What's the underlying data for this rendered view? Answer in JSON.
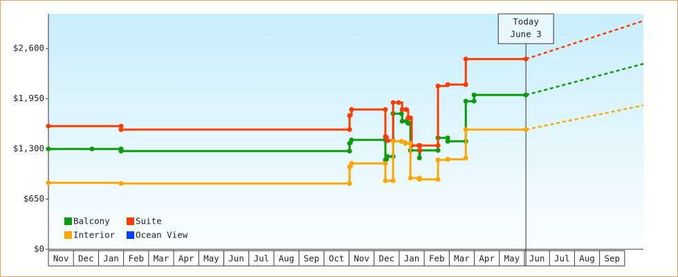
{
  "chart_data": {
    "type": "step-line",
    "ylim": [
      0,
      3050
    ],
    "yticks": [
      {
        "value": 0,
        "label": "$0"
      },
      {
        "value": 650,
        "label": "$650"
      },
      {
        "value": 1300,
        "label": "$1,300"
      },
      {
        "value": 1950,
        "label": "$1,950"
      },
      {
        "value": 2600,
        "label": "$2,600"
      }
    ],
    "xlim": [
      0,
      23.75
    ],
    "categories": [
      "Nov",
      "Dec",
      "Jan",
      "Feb",
      "Mar",
      "Apr",
      "May",
      "Jun",
      "Jul",
      "Aug",
      "Sep",
      "Oct",
      "Nov",
      "Dec",
      "Jan",
      "Feb",
      "Mar",
      "Apr",
      "May",
      "Jun",
      "Jul",
      "Aug",
      "Sep"
    ],
    "annotation": {
      "x": 19.06,
      "lines": [
        "Today",
        "June 3"
      ]
    },
    "series": [
      {
        "name": "Balcony",
        "color": "#0a9a0a",
        "x": [
          0,
          1.74,
          2.9,
          2.9,
          12.02,
          12.02,
          12.1,
          13.45,
          13.45,
          13.54,
          13.76,
          13.76,
          14.09,
          14.12,
          14.28,
          14.36,
          14.45,
          14.45,
          14.81,
          14.81,
          14.83,
          15.55,
          15.55,
          15.94,
          15.94,
          16.66,
          16.66,
          16.99,
          16.99,
          19.06
        ],
        "values": [
          1300,
          1300,
          1300,
          1273,
          1273,
          1372,
          1417,
          1417,
          1157,
          1202,
          1202,
          1757,
          1757,
          1659,
          1659,
          1632,
          1632,
          1282,
          1282,
          1184,
          1282,
          1282,
          1443,
          1443,
          1399,
          1399,
          1919,
          1919,
          1999,
          1999
        ],
        "forecast_x": [
          19.06,
          23.75
        ],
        "forecast_values": [
          1999,
          2403
        ]
      },
      {
        "name": "Suite",
        "color": "#ff3c00",
        "x": [
          0,
          2.9,
          2.9,
          12.02,
          12.02,
          12.1,
          13.45,
          13.45,
          13.54,
          13.76,
          13.76,
          13.98,
          14.12,
          14.28,
          14.36,
          14.45,
          14.5,
          14.78,
          14.83,
          14.83,
          15.55,
          15.55,
          15.94,
          16.66,
          16.66,
          19.06
        ],
        "values": [
          1596,
          1596,
          1551,
          1551,
          1731,
          1811,
          1811,
          1461,
          1408,
          1408,
          1901,
          1901,
          1811,
          1811,
          1703,
          1703,
          1345,
          1345,
          1282,
          1345,
          1345,
          2116,
          2134,
          2134,
          2465,
          2465
        ],
        "forecast_x": [
          19.06,
          23.75
        ],
        "forecast_values": [
          2465,
          2959
        ]
      },
      {
        "name": "Interior",
        "color": "#ffa500",
        "x": [
          0,
          2.9,
          12.02,
          12.02,
          12.1,
          13.45,
          13.45,
          13.76,
          13.76,
          14.09,
          14.25,
          14.45,
          14.45,
          14.81,
          14.81,
          15.55,
          15.55,
          15.94,
          16.66,
          16.66,
          19.06
        ],
        "values": [
          861,
          852,
          852,
          1067,
          1112,
          1112,
          888,
          888,
          1399,
          1399,
          1372,
          1372,
          923,
          923,
          906,
          906,
          1157,
          1166,
          1184,
          1551,
          1551
        ],
        "forecast_x": [
          19.06,
          23.75
        ],
        "forecast_values": [
          1551,
          1865
        ]
      },
      {
        "name": "Ocean View",
        "color": "#0040ff",
        "x": [],
        "values": [],
        "forecast_x": [],
        "forecast_values": []
      }
    ]
  }
}
